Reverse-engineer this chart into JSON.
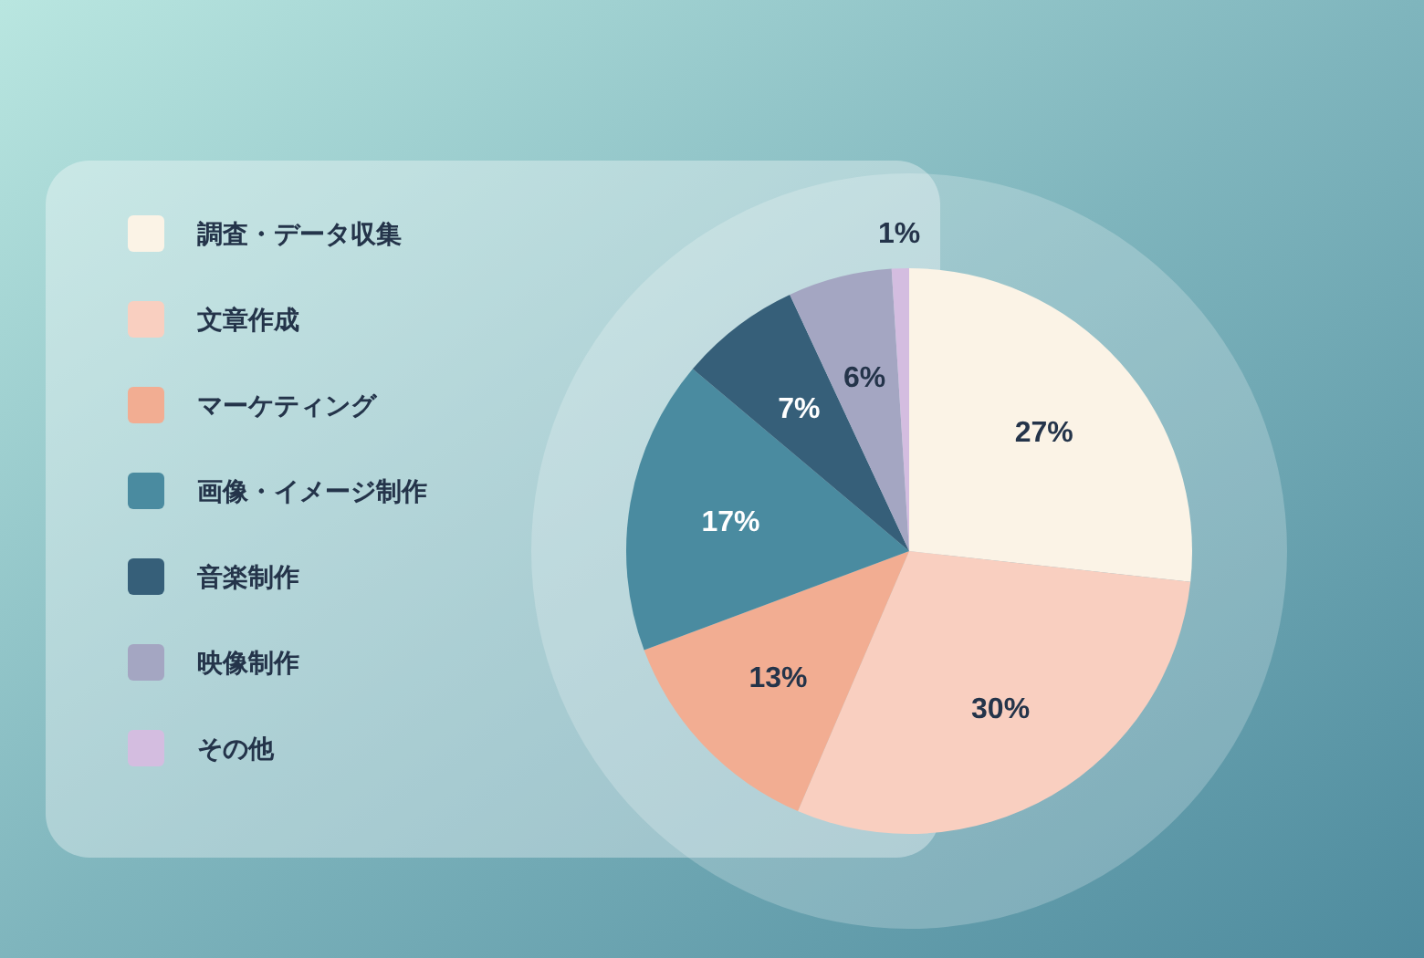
{
  "chart_data": {
    "type": "pie",
    "categories": [
      "調査・データ収集",
      "文章作成",
      "マーケティング",
      "画像・イメージ制作",
      "音楽制作",
      "映像制作",
      "その他"
    ],
    "values": [
      27,
      30,
      13,
      17,
      7,
      6,
      1
    ],
    "colors": [
      "#fbf3e6",
      "#f9cfc0",
      "#f2ad92",
      "#4a8ba0",
      "#365f79",
      "#a4a6c2",
      "#d4bde0"
    ],
    "value_labels": [
      "27%",
      "30%",
      "13%",
      "17%",
      "7%",
      "6%",
      "1%"
    ],
    "legend": "left"
  }
}
